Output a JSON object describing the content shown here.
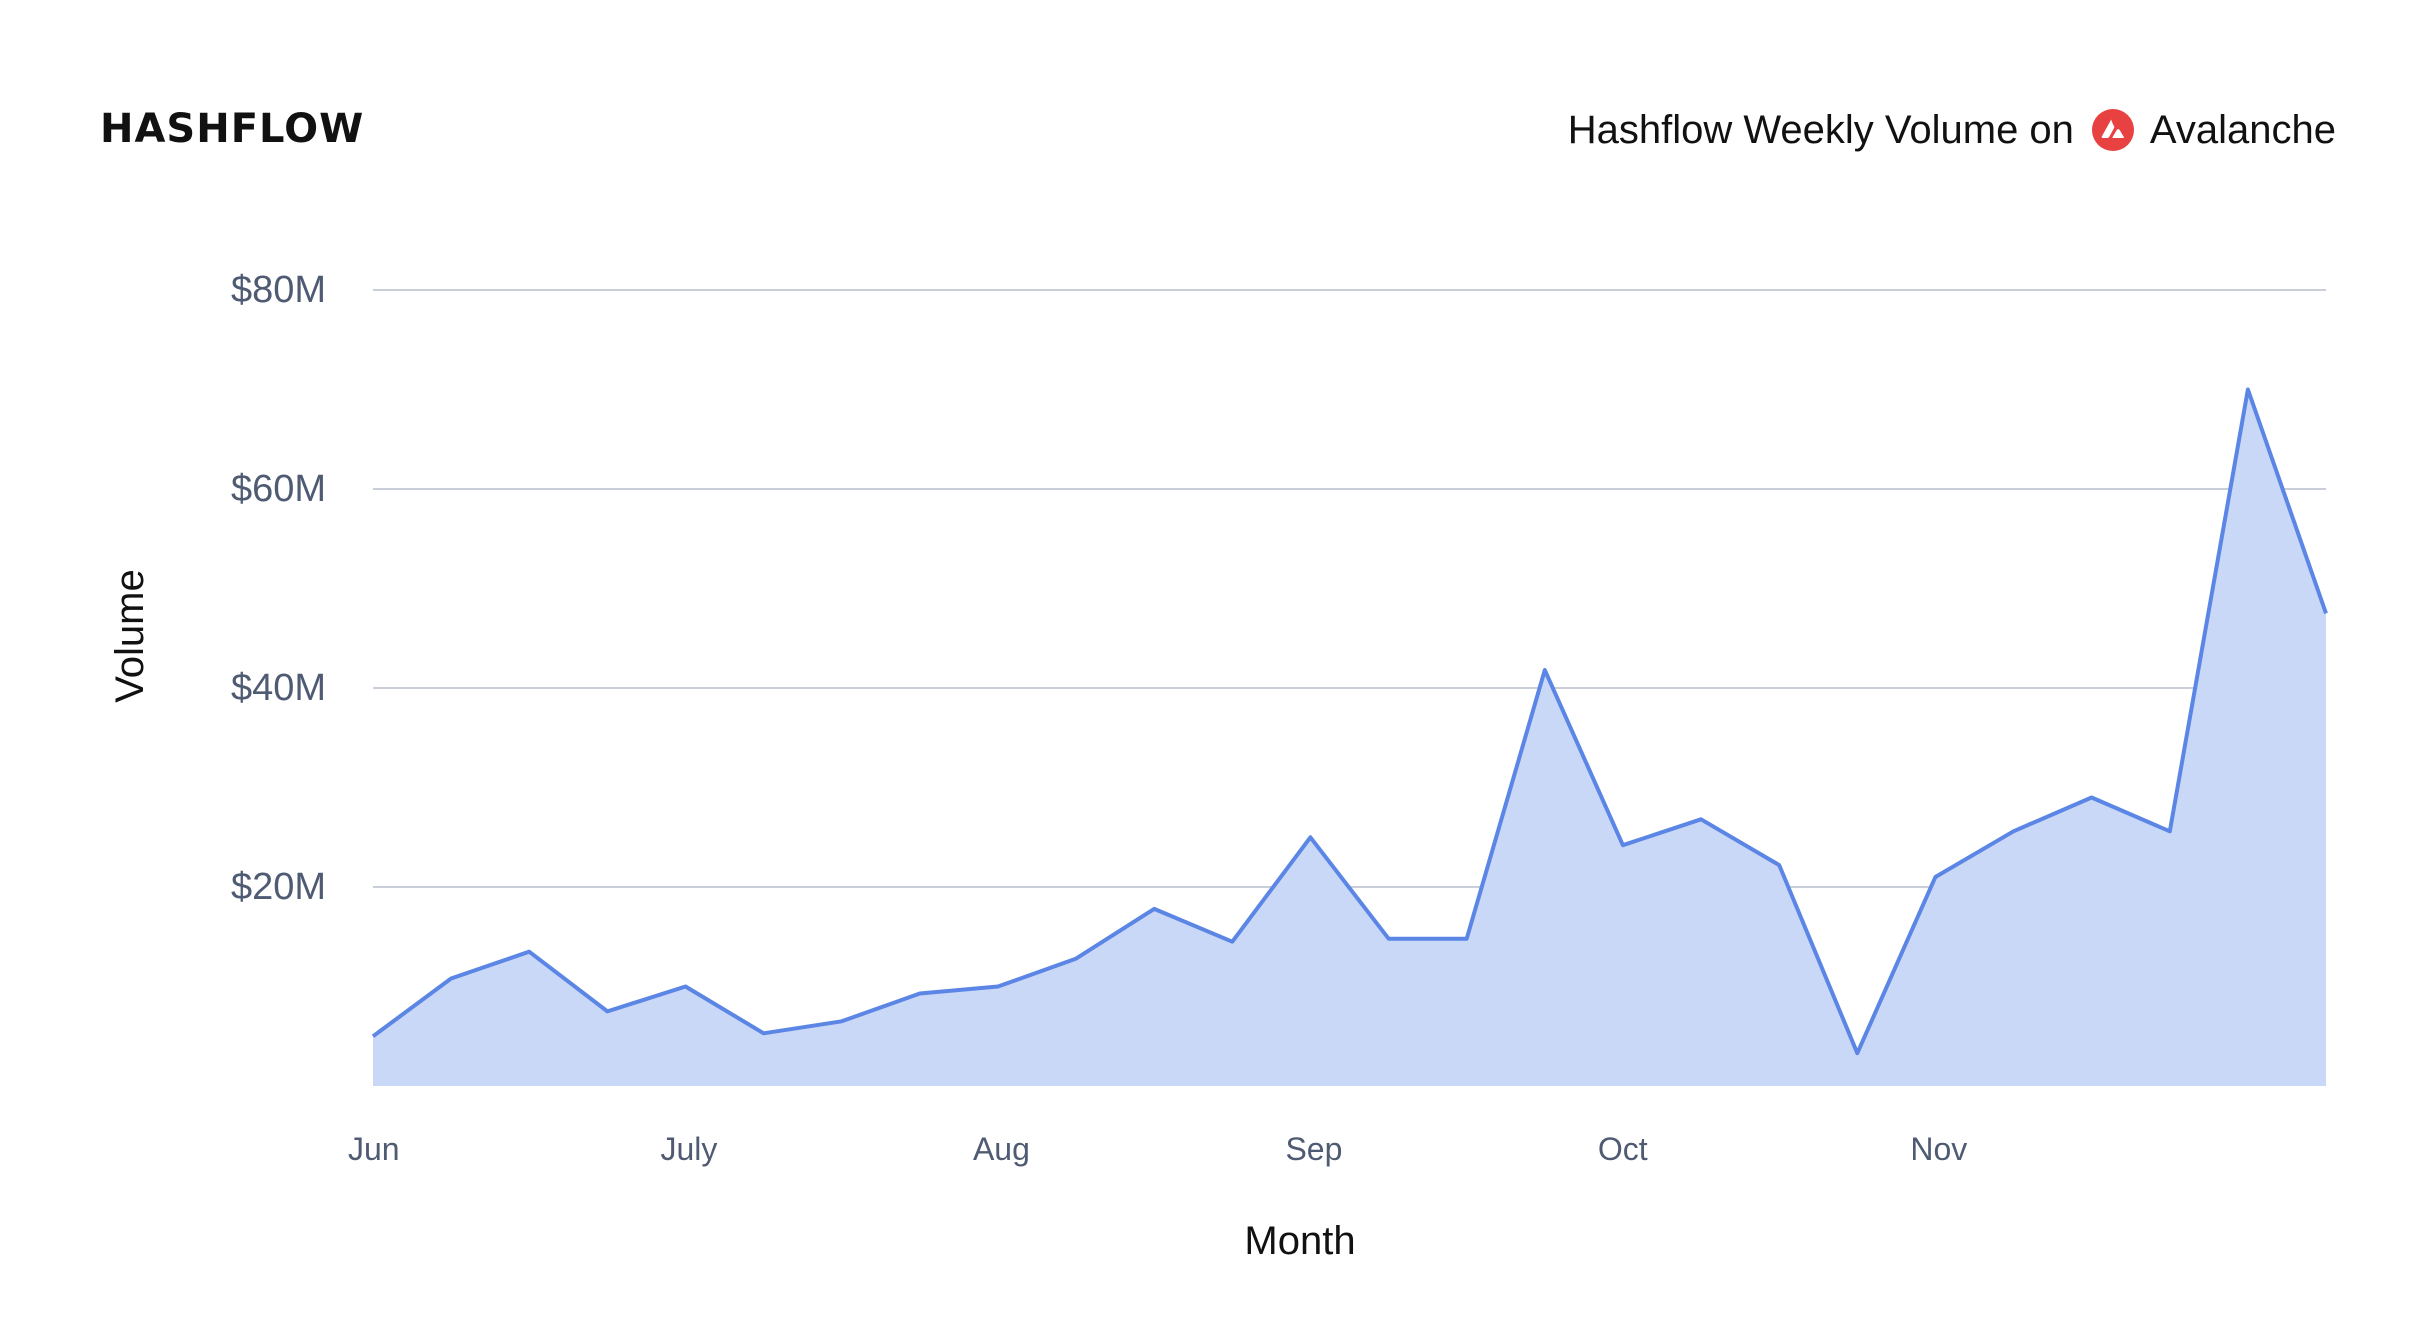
{
  "header": {
    "logo_text": "HASHFLOW",
    "title_prefix": "Hashflow Weekly Volume on",
    "title_chain": "Avalanche",
    "chain_icon": "avalanche-icon"
  },
  "colors": {
    "line": "#5b86e5",
    "area": "#cad8f7",
    "grid": "#c9ced8",
    "avalanche_red": "#e84142"
  },
  "chart_data": {
    "type": "area",
    "xlabel": "Month",
    "ylabel": "Volume",
    "ylim": [
      0,
      80
    ],
    "yticks": [
      {
        "value": 20,
        "label": "$20M"
      },
      {
        "value": 40,
        "label": "$40M"
      },
      {
        "value": 60,
        "label": "$60M"
      },
      {
        "value": 80,
        "label": "$80M"
      }
    ],
    "xticks": [
      {
        "week": 0,
        "label": "Jun"
      },
      {
        "week": 4,
        "label": "July"
      },
      {
        "week": 8,
        "label": "Aug"
      },
      {
        "week": 12,
        "label": "Sep"
      },
      {
        "week": 16,
        "label": "Oct"
      },
      {
        "week": 20,
        "label": "Nov"
      }
    ],
    "grid": true,
    "series": [
      {
        "values": [
          5,
          10.8,
          13.5,
          7.5,
          10,
          5.3,
          6.5,
          9.3,
          10,
          12.8,
          17.8,
          14.5,
          25,
          14.8,
          14.8,
          41.8,
          24.2,
          26.8,
          22.2,
          3.3,
          21,
          25.6,
          29,
          25.6,
          70,
          47.5
        ]
      }
    ]
  }
}
